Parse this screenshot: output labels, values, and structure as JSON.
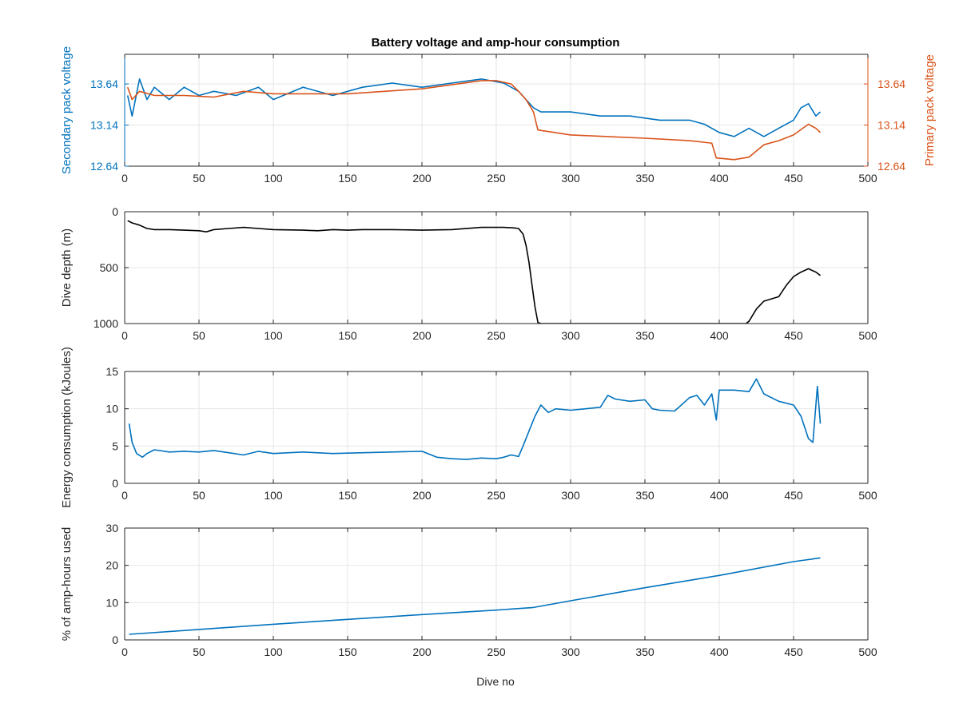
{
  "figure": {
    "title": "Battery voltage and amp-hour consumption",
    "xlabel": "Dive no"
  },
  "colors": {
    "blue": "#0072bd",
    "orange": "#d95319",
    "black": "#000000",
    "grid": "#e6e6e6",
    "axis": "#262626"
  },
  "chart_data": [
    {
      "type": "line",
      "title": "Battery voltage and amp-hour consumption",
      "xlabel": "",
      "ylabel": "Secondary pack voltage",
      "ylabel_right": "Primary pack voltage",
      "xlim": [
        0,
        500
      ],
      "ylim": [
        12.64,
        14.0
      ],
      "ylim_right": [
        12.64,
        14.0
      ],
      "xticks": [
        0,
        50,
        100,
        150,
        200,
        250,
        300,
        350,
        400,
        450,
        500
      ],
      "yticks": [
        12.64,
        13.14,
        13.64
      ],
      "yticks_right": [
        12.64,
        13.14,
        13.64
      ],
      "grid": true,
      "series": [
        {
          "axis": "left",
          "color": "#0072bd",
          "x": [
            2,
            5,
            10,
            15,
            20,
            30,
            40,
            50,
            60,
            75,
            90,
            100,
            120,
            140,
            160,
            180,
            200,
            220,
            240,
            255,
            265,
            270,
            275,
            280,
            300,
            320,
            340,
            360,
            380,
            390,
            400,
            410,
            420,
            430,
            440,
            450,
            455,
            460,
            465,
            468
          ],
          "y": [
            13.5,
            13.25,
            13.7,
            13.45,
            13.6,
            13.45,
            13.6,
            13.5,
            13.55,
            13.5,
            13.6,
            13.45,
            13.6,
            13.5,
            13.6,
            13.65,
            13.6,
            13.65,
            13.7,
            13.65,
            13.55,
            13.45,
            13.35,
            13.3,
            13.3,
            13.25,
            13.25,
            13.2,
            13.2,
            13.15,
            13.05,
            13.0,
            13.1,
            13.0,
            13.1,
            13.2,
            13.35,
            13.4,
            13.25,
            13.3
          ]
        },
        {
          "axis": "right",
          "color": "#d95319",
          "x": [
            2,
            5,
            10,
            20,
            40,
            60,
            80,
            100,
            150,
            200,
            240,
            250,
            260,
            265,
            270,
            275,
            278,
            300,
            350,
            380,
            395,
            398,
            410,
            420,
            430,
            440,
            450,
            460,
            465,
            468
          ],
          "y": [
            13.6,
            13.45,
            13.55,
            13.5,
            13.5,
            13.48,
            13.55,
            13.52,
            13.52,
            13.58,
            13.68,
            13.68,
            13.64,
            13.55,
            13.45,
            13.3,
            13.08,
            13.02,
            12.98,
            12.95,
            12.92,
            12.74,
            12.72,
            12.75,
            12.9,
            12.95,
            13.02,
            13.15,
            13.1,
            13.05
          ]
        }
      ]
    },
    {
      "type": "line",
      "xlabel": "",
      "ylabel": "Dive depth (m)",
      "xlim": [
        0,
        500
      ],
      "ylim": [
        0,
        1000
      ],
      "y_reversed": true,
      "xticks": [
        0,
        50,
        100,
        150,
        200,
        250,
        300,
        350,
        400,
        450,
        500
      ],
      "yticks": [
        0,
        500,
        1000
      ],
      "ytick_labels": [
        "0",
        "500",
        "1000"
      ],
      "grid": true,
      "series": [
        {
          "color": "#000000",
          "x": [
            2,
            5,
            10,
            15,
            20,
            30,
            40,
            50,
            55,
            60,
            70,
            80,
            90,
            100,
            120,
            130,
            140,
            150,
            160,
            180,
            200,
            220,
            240,
            255,
            262,
            265,
            268,
            270,
            272,
            274,
            276,
            278,
            280,
            300,
            320,
            350,
            380,
            400,
            410,
            418,
            420,
            425,
            430,
            440,
            445,
            450,
            455,
            460,
            465,
            468
          ],
          "y": [
            80,
            100,
            120,
            150,
            160,
            160,
            165,
            170,
            180,
            160,
            150,
            140,
            150,
            160,
            165,
            170,
            160,
            165,
            160,
            160,
            165,
            160,
            140,
            140,
            145,
            150,
            200,
            300,
            450,
            650,
            850,
            990,
            1000,
            1000,
            1000,
            1000,
            1000,
            1000,
            1000,
            1000,
            980,
            870,
            800,
            760,
            660,
            580,
            540,
            510,
            540,
            570
          ]
        }
      ]
    },
    {
      "type": "line",
      "xlabel": "",
      "ylabel": "Energy consumption (kJoules)",
      "xlim": [
        0,
        500
      ],
      "ylim": [
        0,
        15
      ],
      "xticks": [
        0,
        50,
        100,
        150,
        200,
        250,
        300,
        350,
        400,
        450,
        500
      ],
      "yticks": [
        0,
        5,
        10,
        15
      ],
      "grid": true,
      "series": [
        {
          "color": "#0072bd",
          "x": [
            3,
            5,
            8,
            12,
            15,
            20,
            30,
            40,
            50,
            60,
            70,
            80,
            90,
            100,
            120,
            140,
            160,
            180,
            200,
            210,
            220,
            230,
            240,
            250,
            255,
            260,
            265,
            268,
            272,
            276,
            280,
            285,
            290,
            300,
            310,
            320,
            325,
            330,
            340,
            350,
            355,
            360,
            370,
            380,
            385,
            390,
            395,
            398,
            400,
            410,
            420,
            425,
            430,
            440,
            450,
            455,
            460,
            463,
            466,
            468
          ],
          "y": [
            8,
            5.5,
            4,
            3.5,
            4,
            4.5,
            4.2,
            4.3,
            4.2,
            4.4,
            4.1,
            3.8,
            4.3,
            4,
            4.2,
            4,
            4.1,
            4.2,
            4.3,
            3.5,
            3.3,
            3.2,
            3.4,
            3.3,
            3.5,
            3.8,
            3.6,
            5,
            7,
            9,
            10.5,
            9.5,
            10,
            9.8,
            10,
            10.2,
            11.8,
            11.3,
            11,
            11.2,
            10,
            9.8,
            9.7,
            11.5,
            11.8,
            10.5,
            12,
            8.5,
            12.5,
            12.5,
            12.3,
            14,
            12,
            11,
            10.5,
            9,
            6,
            5.5,
            13,
            8
          ]
        }
      ]
    },
    {
      "type": "line",
      "xlabel": "Dive no",
      "ylabel": "% of amp-hours used",
      "xlim": [
        0,
        500
      ],
      "ylim": [
        0,
        30
      ],
      "xticks": [
        0,
        50,
        100,
        150,
        200,
        250,
        300,
        350,
        400,
        450,
        500
      ],
      "yticks": [
        0,
        10,
        20,
        30
      ],
      "grid": true,
      "series": [
        {
          "color": "#0072bd",
          "x": [
            3,
            50,
            100,
            150,
            200,
            250,
            275,
            300,
            350,
            400,
            450,
            468
          ],
          "y": [
            1.5,
            2.8,
            4.2,
            5.5,
            6.8,
            8.0,
            8.7,
            10.5,
            14.0,
            17.3,
            21.0,
            22.0
          ]
        }
      ]
    }
  ]
}
